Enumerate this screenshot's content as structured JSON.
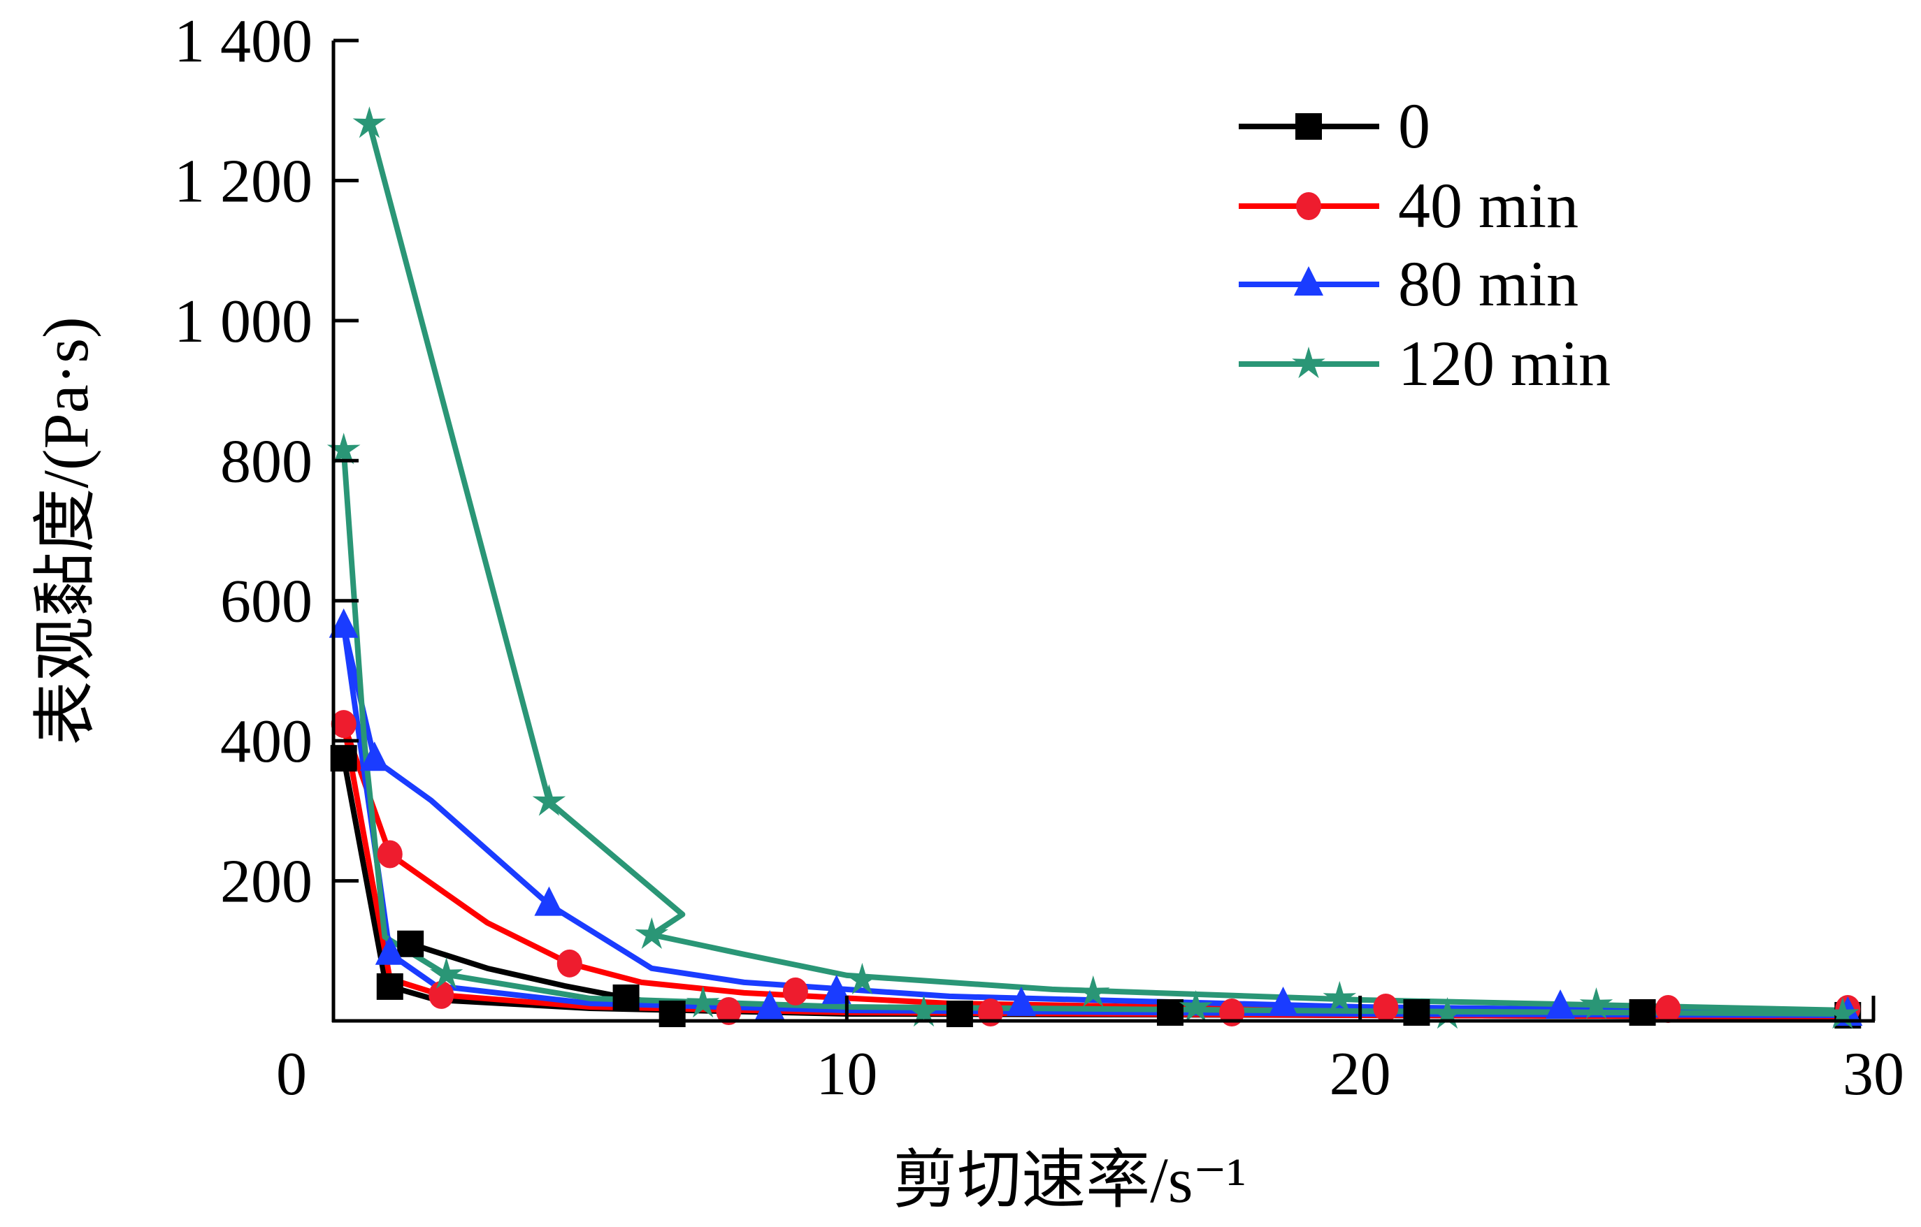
{
  "chart_data": {
    "type": "line",
    "xlabel": "剪切速率/s⁻¹",
    "ylabel": "表观黏度/(Pa·s)",
    "xlim": [
      0,
      30
    ],
    "ylim": [
      0,
      1400
    ],
    "xticks": [
      0,
      10,
      20,
      30
    ],
    "xtick_labels": [
      "0",
      "10",
      "20",
      "30"
    ],
    "yticks": [
      200,
      400,
      600,
      800,
      1000,
      1200,
      1400
    ],
    "ytick_labels": [
      "200",
      "400",
      "600",
      "800",
      "1 000",
      "1 200",
      "1 400"
    ],
    "grid": false,
    "legend_position": "top-right",
    "series": [
      {
        "name": "0",
        "color": "#000000",
        "marker": "square",
        "lines": [
          [
            [
              0.2,
              375
            ],
            [
              1.0,
              60
            ],
            [
              1.1,
              49
            ],
            [
              2,
              30
            ],
            [
              5,
              18
            ],
            [
              10,
              10
            ],
            [
              20,
              8
            ],
            [
              29.5,
              6
            ]
          ],
          [
            [
              1.5,
              110
            ],
            [
              3,
              75
            ],
            [
              4.5,
              50
            ],
            [
              5.7,
              33
            ],
            [
              6.6,
              22
            ],
            [
              8,
              18
            ],
            [
              12,
              12
            ],
            [
              20,
              10
            ],
            [
              29.5,
              8
            ]
          ]
        ],
        "points": [
          [
            0.2,
            375
          ],
          [
            1.1,
            49
          ],
          [
            1.5,
            110
          ],
          [
            5.7,
            33
          ],
          [
            6.6,
            10
          ],
          [
            12.2,
            10
          ],
          [
            16.3,
            12
          ],
          [
            21.1,
            12
          ],
          [
            25.5,
            12
          ],
          [
            29.5,
            8
          ]
        ]
      },
      {
        "name": "40 min",
        "color": "#ee1c2e",
        "line_color": "#ff0000",
        "marker": "circle",
        "lines": [
          [
            [
              0.2,
              424
            ],
            [
              1.1,
              238
            ],
            [
              3,
              140
            ],
            [
              4.6,
              82
            ],
            [
              6,
              55
            ],
            [
              8,
              40
            ],
            [
              12,
              25
            ],
            [
              20,
              15
            ],
            [
              29.5,
              10
            ]
          ],
          [
            [
              0.2,
              424
            ],
            [
              1.1,
              60
            ],
            [
              2.1,
              37
            ],
            [
              5,
              20
            ],
            [
              10,
              12
            ],
            [
              20,
              8
            ],
            [
              29.5,
              6
            ]
          ]
        ],
        "points": [
          [
            0.2,
            424
          ],
          [
            1.1,
            238
          ],
          [
            2.1,
            37
          ],
          [
            4.6,
            82
          ],
          [
            7.7,
            14
          ],
          [
            9,
            42
          ],
          [
            12.8,
            12
          ],
          [
            17.5,
            12
          ],
          [
            20.5,
            19
          ],
          [
            26,
            17
          ],
          [
            29.5,
            17
          ]
        ]
      },
      {
        "name": "80 min",
        "color": "#1a3cff",
        "marker": "triangle",
        "lines": [
          [
            [
              0.2,
              563
            ],
            [
              0.8,
              373
            ],
            [
              1.9,
              315
            ],
            [
              4.2,
              166
            ],
            [
              6.2,
              75
            ],
            [
              8,
              55
            ],
            [
              12,
              35
            ],
            [
              20,
              20
            ],
            [
              29.5,
              12
            ]
          ],
          [
            [
              0.2,
              563
            ],
            [
              1.1,
              96
            ],
            [
              2,
              50
            ],
            [
              5,
              25
            ],
            [
              10,
              15
            ],
            [
              20,
              10
            ],
            [
              29.5,
              8
            ]
          ]
        ],
        "points": [
          [
            0.2,
            563
          ],
          [
            0.8,
            373
          ],
          [
            1.1,
            96
          ],
          [
            4.2,
            166
          ],
          [
            8.5,
            18
          ],
          [
            9.8,
            40
          ],
          [
            13.4,
            23
          ],
          [
            18.5,
            23
          ],
          [
            23.9,
            19
          ],
          [
            29.5,
            9
          ]
        ]
      },
      {
        "name": "120 min",
        "color": "#2a9676",
        "marker": "star",
        "lines": [
          [
            [
              0.2,
              815
            ],
            [
              0.6,
              400
            ],
            [
              1.0,
              120
            ],
            [
              2.2,
              66
            ],
            [
              5,
              32
            ],
            [
              10,
              20
            ],
            [
              20,
              14
            ],
            [
              29.5,
              10
            ]
          ],
          [
            [
              0.7,
              1281
            ],
            [
              4.2,
              313
            ],
            [
              6.8,
              152
            ],
            [
              6.2,
              123
            ],
            [
              8,
              95
            ],
            [
              10,
              65
            ],
            [
              14,
              45
            ],
            [
              20,
              30
            ],
            [
              29.5,
              15
            ]
          ]
        ],
        "points": [
          [
            0.2,
            815
          ],
          [
            0.7,
            1281
          ],
          [
            2.2,
            66
          ],
          [
            4.2,
            313
          ],
          [
            6.2,
            123
          ],
          [
            7.2,
            25
          ],
          [
            10.3,
            58
          ],
          [
            11.5,
            12
          ],
          [
            14.8,
            40
          ],
          [
            16.8,
            19
          ],
          [
            19.6,
            32
          ],
          [
            21.7,
            9
          ],
          [
            24.6,
            23
          ],
          [
            29.4,
            9
          ]
        ]
      }
    ]
  }
}
